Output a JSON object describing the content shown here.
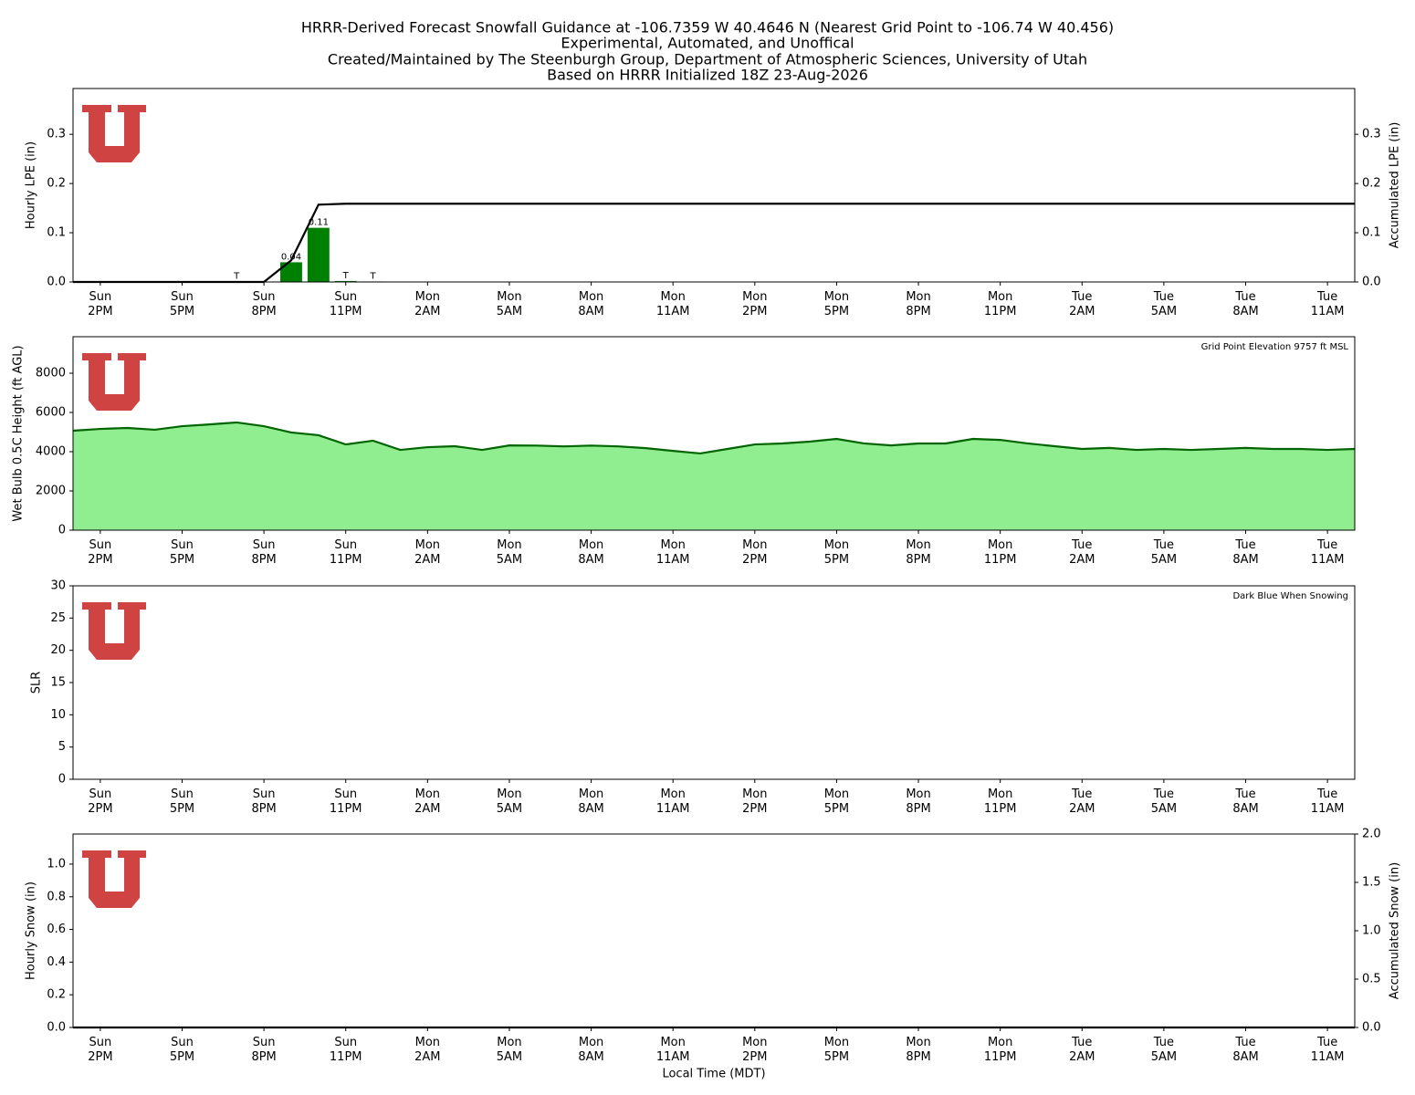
{
  "title": [
    "HRRR-Derived Forecast Snowfall Guidance at -106.7359 W 40.4646 N (Nearest Grid Point to -106.74 W 40.456)",
    "Experimental, Automated, and Unoffical",
    "Created/Maintained by The Steenburgh Group, Department of Atmospheric Sciences, University of Utah",
    "Based on HRRR Initialized 18Z 23-Aug-2026"
  ],
  "chart_data": [
    {
      "type": "bar",
      "categories": [
        null,
        "Sun\n2PM",
        null,
        null,
        "Sun\n5PM",
        null,
        null,
        "Sun\n8PM",
        null,
        null,
        "Sun\n11PM",
        null,
        null,
        "Mon\n2AM",
        null,
        null,
        "Mon\n5AM",
        null,
        null,
        "Mon\n8AM",
        null,
        null,
        "Mon\n11AM",
        null,
        null,
        "Mon\n2PM",
        null,
        null,
        "Mon\n5PM",
        null,
        null,
        "Mon\n8PM",
        null,
        null,
        "Mon\n11PM",
        null,
        null,
        "Tue\n2AM",
        null,
        null,
        "Tue\n5AM",
        null,
        null,
        "Tue\n8AM",
        null,
        null,
        "Tue\n11AM",
        null
      ],
      "ylabel": "Hourly LPE (in)",
      "y2label": "Accumulated LPE (in)",
      "ylim": [
        0,
        0.393
      ],
      "yticks": [
        {
          "value": 0,
          "label": "0.0"
        },
        0.1,
        0.2,
        0.3
      ],
      "y2lim": [
        0,
        0.393
      ],
      "y2ticks": [
        {
          "value": 0,
          "label": "0.0"
        },
        0.1,
        0.2,
        0.3
      ],
      "series": [
        {
          "kind": "bar",
          "color": "#008000",
          "values": [
            0,
            0,
            0,
            0,
            0,
            0,
            0.001,
            0,
            0.04,
            0.11,
            0.002,
            0.001,
            0,
            0,
            0,
            0,
            0,
            0,
            0,
            0,
            0,
            0,
            0,
            0,
            0,
            0,
            0,
            0,
            0,
            0,
            0,
            0,
            0,
            0,
            0,
            0,
            0,
            0,
            0,
            0,
            0,
            0,
            0,
            0,
            0,
            0,
            0,
            0
          ],
          "value_labels": [
            null,
            null,
            null,
            null,
            null,
            null,
            "T",
            null,
            "0.04",
            "0.11",
            "T",
            "T",
            null,
            null,
            null,
            null,
            null,
            null,
            null,
            null,
            null,
            null,
            null,
            null,
            null,
            null,
            null,
            null,
            null,
            null,
            null,
            null,
            null,
            null,
            null,
            null,
            null,
            null,
            null,
            null,
            null,
            null,
            null,
            null,
            null,
            null,
            null,
            null
          ]
        },
        {
          "kind": "line",
          "color": "#000000",
          "axis": "y2",
          "values": [
            0,
            0,
            0,
            0,
            0,
            0,
            0,
            0,
            0.044,
            0.157,
            0.159,
            0.159,
            0.159,
            0.159,
            0.159,
            0.159,
            0.159,
            0.159,
            0.159,
            0.159,
            0.159,
            0.159,
            0.159,
            0.159,
            0.159,
            0.159,
            0.159,
            0.159,
            0.159,
            0.159,
            0.159,
            0.159,
            0.159,
            0.159,
            0.159,
            0.159,
            0.159,
            0.159,
            0.159,
            0.159,
            0.159,
            0.159,
            0.159,
            0.159,
            0.159,
            0.159,
            0.159,
            0.159
          ]
        }
      ]
    },
    {
      "type": "area",
      "categories": [
        null,
        "Sun\n2PM",
        null,
        null,
        "Sun\n5PM",
        null,
        null,
        "Sun\n8PM",
        null,
        null,
        "Sun\n11PM",
        null,
        null,
        "Mon\n2AM",
        null,
        null,
        "Mon\n5AM",
        null,
        null,
        "Mon\n8AM",
        null,
        null,
        "Mon\n11AM",
        null,
        null,
        "Mon\n2PM",
        null,
        null,
        "Mon\n5PM",
        null,
        null,
        "Mon\n8PM",
        null,
        null,
        "Mon\n11PM",
        null,
        null,
        "Tue\n2AM",
        null,
        null,
        "Tue\n5AM",
        null,
        null,
        "Tue\n8AM",
        null,
        null,
        "Tue\n11AM",
        null
      ],
      "ylabel": "Wet Bulb 0.5C Height (ft AGL)",
      "annotation": "Grid Point Elevation 9757 ft MSL",
      "ylim": [
        0,
        9860
      ],
      "yticks": [
        0,
        2000,
        4000,
        6000,
        8000
      ],
      "series": [
        {
          "kind": "area",
          "color": "#006400",
          "fill": "#90ee90",
          "values": [
            5070,
            5160,
            5210,
            5120,
            5300,
            5390,
            5490,
            5300,
            4980,
            4840,
            4370,
            4560,
            4090,
            4230,
            4280,
            4090,
            4320,
            4310,
            4270,
            4310,
            4270,
            4180,
            4040,
            3910,
            4140,
            4370,
            4420,
            4510,
            4650,
            4420,
            4320,
            4420,
            4420,
            4650,
            4600,
            4420,
            4280,
            4140,
            4190,
            4090,
            4140,
            4090,
            4140,
            4190,
            4140,
            4140,
            4090,
            4140
          ]
        }
      ]
    },
    {
      "type": "line",
      "categories": [
        null,
        "Sun\n2PM",
        null,
        null,
        "Sun\n5PM",
        null,
        null,
        "Sun\n8PM",
        null,
        null,
        "Sun\n11PM",
        null,
        null,
        "Mon\n2AM",
        null,
        null,
        "Mon\n5AM",
        null,
        null,
        "Mon\n8AM",
        null,
        null,
        "Mon\n11AM",
        null,
        null,
        "Mon\n2PM",
        null,
        null,
        "Mon\n5PM",
        null,
        null,
        "Mon\n8PM",
        null,
        null,
        "Mon\n11PM",
        null,
        null,
        "Tue\n2AM",
        null,
        null,
        "Tue\n5AM",
        null,
        null,
        "Tue\n8AM",
        null,
        null,
        "Tue\n11AM",
        null
      ],
      "ylabel": "SLR",
      "annotation": "Dark Blue When Snowing",
      "ylim": [
        0,
        30
      ],
      "yticks": [
        0,
        5,
        10,
        15,
        20,
        25,
        30
      ],
      "series": []
    },
    {
      "type": "bar",
      "categories": [
        null,
        "Sun\n2PM",
        null,
        null,
        "Sun\n5PM",
        null,
        null,
        "Sun\n8PM",
        null,
        null,
        "Sun\n11PM",
        null,
        null,
        "Mon\n2AM",
        null,
        null,
        "Mon\n5AM",
        null,
        null,
        "Mon\n8AM",
        null,
        null,
        "Mon\n11AM",
        null,
        null,
        "Mon\n2PM",
        null,
        null,
        "Mon\n5PM",
        null,
        null,
        "Mon\n8PM",
        null,
        null,
        "Mon\n11PM",
        null,
        null,
        "Tue\n2AM",
        null,
        null,
        "Tue\n5AM",
        null,
        null,
        "Tue\n8AM",
        null,
        null,
        "Tue\n11AM",
        null
      ],
      "ylabel": "Hourly Snow (in)",
      "y2label": "Accumulated Snow (in)",
      "xlabel": "Local Time (MDT)",
      "ylim": [
        0,
        1.184
      ],
      "yticks": [
        {
          "value": 0,
          "label": "0.0"
        },
        0.2,
        0.4,
        0.6,
        0.8,
        {
          "value": 1,
          "label": "1.0"
        }
      ],
      "y2lim": [
        0,
        2
      ],
      "y2ticks": [
        {
          "value": 0,
          "label": "0.0"
        },
        0.5,
        {
          "value": 1,
          "label": "1.0"
        },
        1.5,
        {
          "value": 2,
          "label": "2.0"
        }
      ],
      "series": [
        {
          "kind": "bar",
          "color": "#00008b",
          "values": [
            0,
            0,
            0,
            0,
            0,
            0,
            0,
            0,
            0,
            0,
            0,
            0,
            0,
            0,
            0,
            0,
            0,
            0,
            0,
            0,
            0,
            0,
            0,
            0,
            0,
            0,
            0,
            0,
            0,
            0,
            0,
            0,
            0,
            0,
            0,
            0,
            0,
            0,
            0,
            0,
            0,
            0,
            0,
            0,
            0,
            0,
            0,
            0
          ]
        },
        {
          "kind": "line",
          "color": "#000000",
          "axis": "y2",
          "values": [
            0,
            0,
            0,
            0,
            0,
            0,
            0,
            0,
            0,
            0,
            0,
            0,
            0,
            0,
            0,
            0,
            0,
            0,
            0,
            0,
            0,
            0,
            0,
            0,
            0,
            0,
            0,
            0,
            0,
            0,
            0,
            0,
            0,
            0,
            0,
            0,
            0,
            0,
            0,
            0,
            0,
            0,
            0,
            0,
            0,
            0,
            0,
            0
          ]
        }
      ]
    }
  ]
}
